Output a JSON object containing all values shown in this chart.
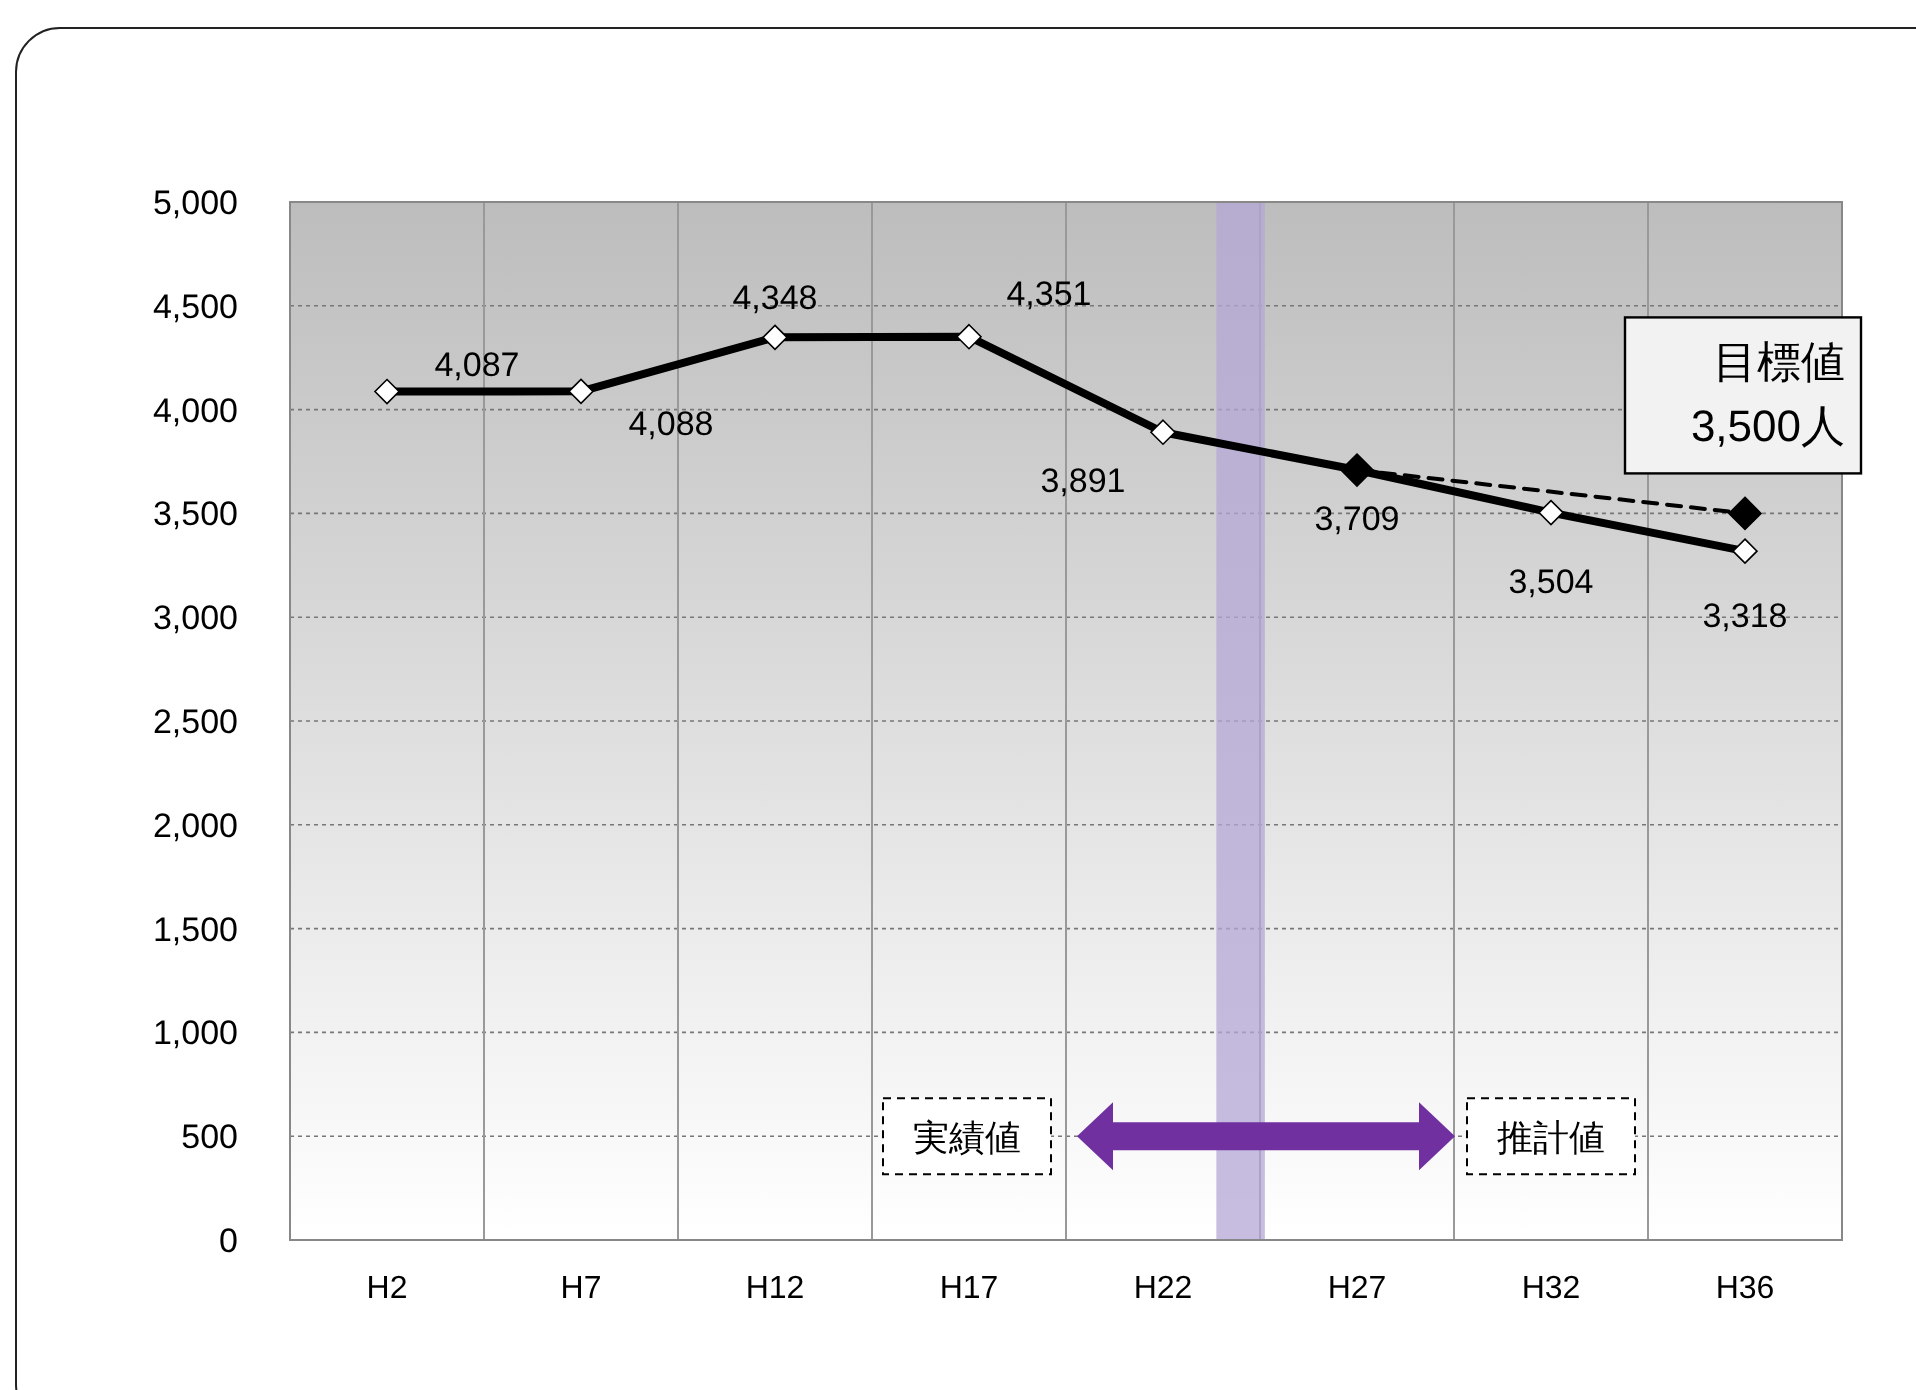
{
  "chart_data": {
    "type": "line",
    "categories": [
      "H2",
      "H7",
      "H12",
      "H17",
      "H22",
      "H27",
      "H32",
      "H36"
    ],
    "series": [
      {
        "color": "#000000",
        "values": [
          4087,
          4088,
          4348,
          4351,
          3891,
          3709,
          3504,
          3318
        ],
        "marker": "diamond",
        "line_style": "solid",
        "value_labels": [
          "4,087",
          "4,088",
          "4,348",
          "4,351",
          "3,891",
          "3,709",
          "3,504",
          "3,318"
        ]
      },
      {
        "type": "line",
        "color": "#000000",
        "values": [
          null,
          null,
          null,
          null,
          null,
          3709,
          null,
          3500
        ],
        "marker": "diamond",
        "line_style": "dashed"
      }
    ],
    "ylim": [
      0,
      5000
    ],
    "yticks": [
      {
        "value": 0,
        "label": "0"
      },
      {
        "value": 500,
        "label": "500"
      },
      {
        "value": 1000,
        "label": "1,000"
      },
      {
        "value": 1500,
        "label": "1,500"
      },
      {
        "value": 2000,
        "label": "2,000"
      },
      {
        "value": 2500,
        "label": "2,500"
      },
      {
        "value": 3000,
        "label": "3,000"
      },
      {
        "value": 3500,
        "label": "3,500"
      },
      {
        "value": 4000,
        "label": "4,000"
      },
      {
        "value": 4500,
        "label": "4,500"
      },
      {
        "value": 5000,
        "label": "5,000"
      }
    ],
    "grid": true,
    "bands": [
      {
        "axis": "x",
        "from": "H22",
        "to": "H27",
        "color": "#b4a7d6"
      }
    ],
    "annotations": [
      {
        "text": "目標値\n3,500人",
        "x": "H36",
        "y": 3500
      },
      "実績値",
      "推計値"
    ]
  }
}
